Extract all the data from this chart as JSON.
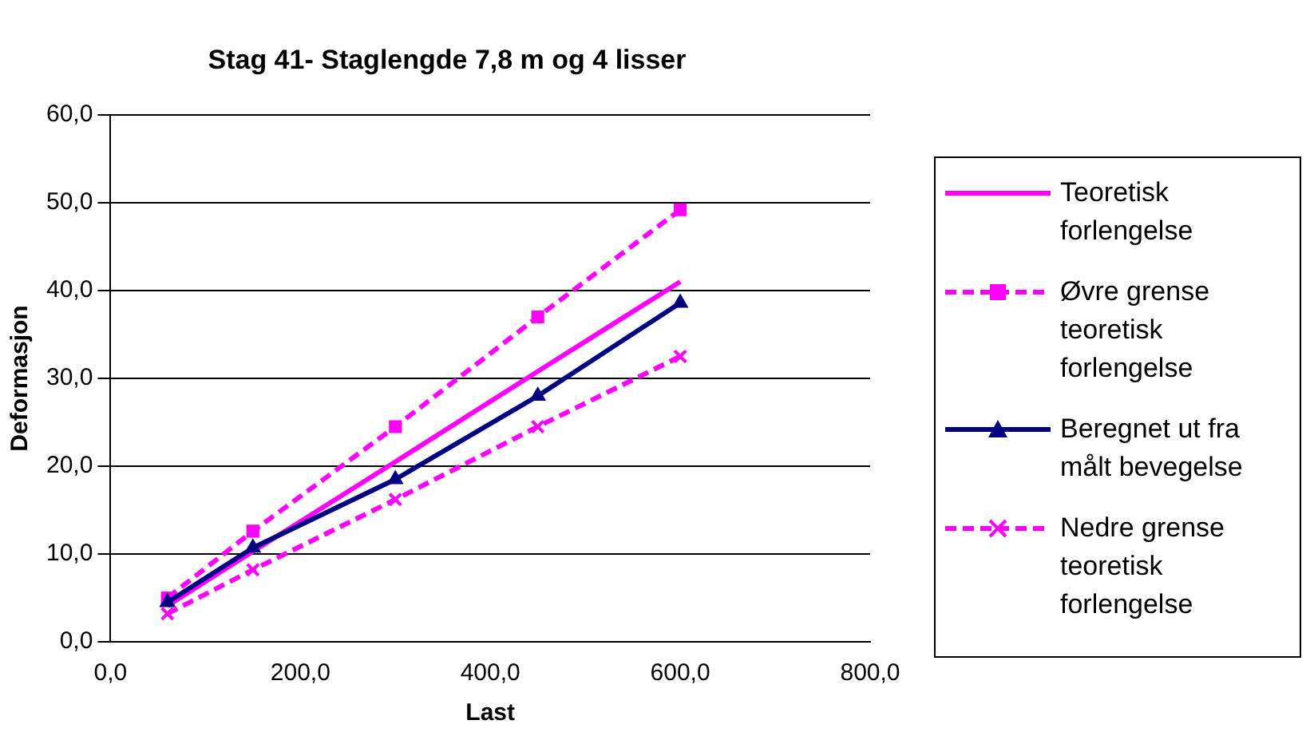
{
  "chart_data": {
    "type": "line",
    "title": "Stag 41- Staglengde 7,8 m og 4 lisser",
    "xlabel": "Last",
    "ylabel": "Deformasjon",
    "x": [
      60,
      150,
      300,
      450,
      600
    ],
    "series": [
      {
        "name": "Teoretisk forlengelse",
        "color": "#ff00ff",
        "values": [
          4.1,
          10.3,
          20.5,
          30.8,
          41.0
        ],
        "marker": "none",
        "line_style": "solid"
      },
      {
        "name": "Øvre grense teoretisk forlengelse",
        "color": "#ff00ff",
        "values": [
          5.0,
          12.6,
          24.5,
          37.0,
          49.2
        ],
        "marker": "square",
        "line_style": "dashed"
      },
      {
        "name": "Beregnet ut fra målt bevegelse",
        "color": "#000080",
        "values": [
          4.5,
          10.7,
          18.5,
          28.0,
          38.6
        ],
        "marker": "triangle",
        "line_style": "solid"
      },
      {
        "name": "Nedre grense teoretisk forlengelse",
        "color": "#ff00ff",
        "values": [
          3.2,
          8.2,
          16.2,
          24.5,
          32.5
        ],
        "marker": "cross",
        "line_style": "dashed"
      }
    ],
    "xlim": [
      0,
      800
    ],
    "xticks": [
      {
        "value": 0,
        "label": "0,0"
      },
      {
        "value": 200,
        "label": "200,0"
      },
      {
        "value": 400,
        "label": "400,0"
      },
      {
        "value": 600,
        "label": "600,0"
      },
      {
        "value": 800,
        "label": "800,0"
      }
    ],
    "ylim": [
      0,
      60
    ],
    "yticks": [
      {
        "value": 0,
        "label": "0,0"
      },
      {
        "value": 10,
        "label": "10,0"
      },
      {
        "value": 20,
        "label": "20,0"
      },
      {
        "value": 30,
        "label": "30,0"
      },
      {
        "value": 40,
        "label": "40,0"
      },
      {
        "value": 50,
        "label": "50,0"
      },
      {
        "value": 60,
        "label": "60,0"
      }
    ],
    "grid": "y",
    "legend": "right"
  }
}
